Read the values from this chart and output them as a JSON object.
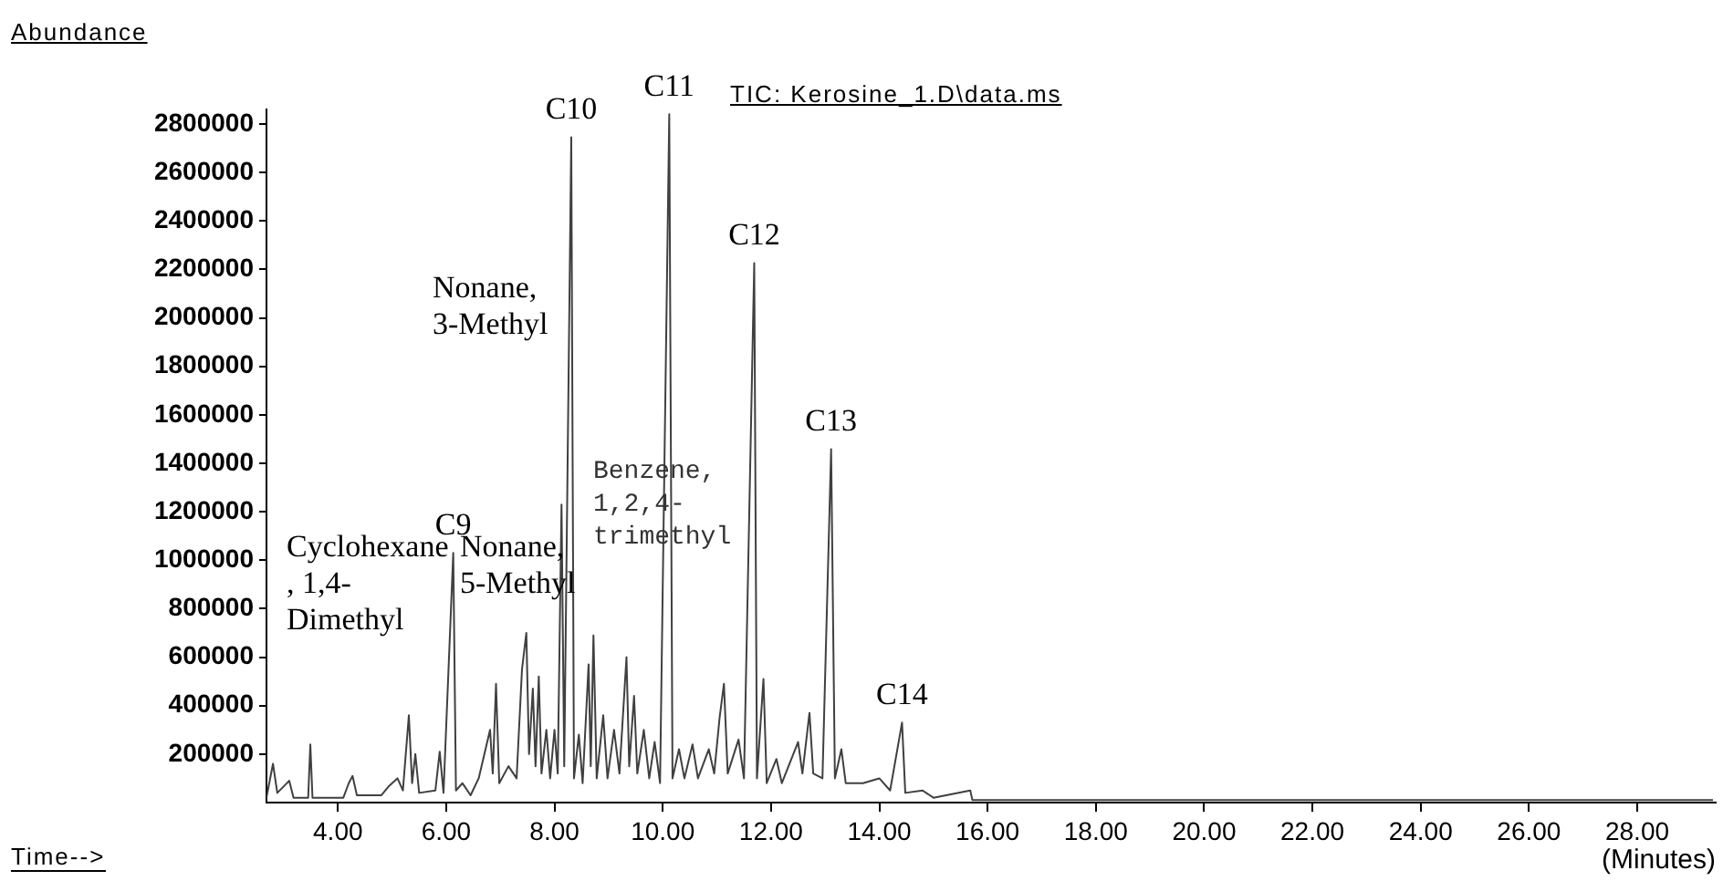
{
  "chart_data": {
    "type": "line",
    "title": "TIC: Kerosine_1.D\\data.ms",
    "ylabel": "Abundance",
    "xlabel": "Time-->",
    "annotations": [
      {
        "text": "C9",
        "x": 6.13,
        "y": 1030000
      },
      {
        "text": "C10",
        "x": 8.31,
        "y": 2745000
      },
      {
        "text": "C11",
        "x": 10.12,
        "y": 2840000
      },
      {
        "text": "C12",
        "x": 11.69,
        "y": 2226000
      },
      {
        "text": "C13",
        "x": 13.11,
        "y": 1458000
      },
      {
        "text": "C14",
        "x": 14.42,
        "y": 330000
      },
      "Nonane,\n3-Methyl",
      "Cyclohexane\n, 1,4-\nDimethyl",
      "Nonane,\n5-Methyl",
      "Benzene,\n1,2,4-\ntrimethyl",
      "(Minutes)"
    ],
    "series": [
      {
        "color": "#404040",
        "x": [
          2.68,
          2.8,
          2.88,
          3.1,
          3.18,
          3.45,
          3.49,
          3.53,
          4.1,
          4.2,
          4.27,
          4.35,
          4.8,
          4.95,
          5.1,
          5.2,
          5.31,
          5.37,
          5.43,
          5.5,
          5.8,
          5.88,
          5.95,
          6.13,
          6.18,
          6.3,
          6.45,
          6.6,
          6.81,
          6.86,
          6.92,
          6.98,
          7.15,
          7.3,
          7.4,
          7.48,
          7.53,
          7.6,
          7.65,
          7.71,
          7.76,
          7.85,
          7.92,
          8.0,
          8.06,
          8.13,
          8.18,
          8.31,
          8.36,
          8.45,
          8.52,
          8.63,
          8.67,
          8.72,
          8.78,
          8.9,
          8.98,
          9.1,
          9.2,
          9.33,
          9.38,
          9.47,
          9.53,
          9.65,
          9.75,
          9.85,
          9.95,
          10.12,
          10.18,
          10.3,
          10.4,
          10.55,
          10.65,
          10.85,
          10.95,
          11.05,
          11.13,
          11.2,
          11.4,
          11.5,
          11.69,
          11.74,
          11.86,
          11.92,
          12.1,
          12.2,
          12.5,
          12.58,
          12.71,
          12.78,
          12.95,
          13.11,
          13.18,
          13.3,
          13.38,
          13.7,
          14.0,
          14.2,
          14.42,
          14.48,
          14.8,
          15.0,
          15.68,
          15.72,
          17.0,
          20.0,
          23.0,
          26.0,
          29.4
        ],
        "values": [
          20000,
          160000,
          40000,
          90000,
          20000,
          20000,
          240000,
          20000,
          20000,
          80000,
          110000,
          30000,
          30000,
          70000,
          100000,
          50000,
          360000,
          80000,
          200000,
          40000,
          50000,
          210000,
          40000,
          1030000,
          50000,
          80000,
          30000,
          100000,
          300000,
          120000,
          490000,
          80000,
          150000,
          100000,
          550000,
          700000,
          200000,
          470000,
          150000,
          520000,
          120000,
          300000,
          100000,
          300000,
          120000,
          1230000,
          150000,
          2745000,
          100000,
          280000,
          80000,
          570000,
          150000,
          690000,
          100000,
          360000,
          100000,
          300000,
          120000,
          600000,
          150000,
          440000,
          120000,
          300000,
          100000,
          250000,
          80000,
          2840000,
          100000,
          220000,
          100000,
          240000,
          100000,
          220000,
          120000,
          350000,
          490000,
          120000,
          260000,
          100000,
          2226000,
          100000,
          510000,
          80000,
          180000,
          80000,
          250000,
          120000,
          370000,
          120000,
          100000,
          1458000,
          100000,
          220000,
          80000,
          80000,
          100000,
          50000,
          330000,
          40000,
          50000,
          20000,
          50000,
          10000,
          10000,
          10000,
          10000,
          10000,
          10000
        ]
      }
    ],
    "xlim": [
      2.68,
      29.45
    ],
    "xticks": [
      {
        "value": 4,
        "label": "4.00"
      },
      {
        "value": 6,
        "label": "6.00"
      },
      {
        "value": 8,
        "label": "8.00"
      },
      {
        "value": 10,
        "label": "10.00"
      },
      {
        "value": 12,
        "label": "12.00"
      },
      {
        "value": 14,
        "label": "14.00"
      },
      {
        "value": 16,
        "label": "16.00"
      },
      {
        "value": 18,
        "label": "18.00"
      },
      {
        "value": 20,
        "label": "20.00"
      },
      {
        "value": 22,
        "label": "22.00"
      },
      {
        "value": 24,
        "label": "24.00"
      },
      {
        "value": 26,
        "label": "26.00"
      },
      {
        "value": 28,
        "label": "28.00"
      }
    ],
    "ylim": [
      0,
      2860000
    ],
    "yticks": [
      200000,
      400000,
      600000,
      800000,
      1000000,
      1200000,
      1400000,
      1600000,
      1800000,
      2000000,
      2200000,
      2400000,
      2600000,
      2800000
    ],
    "grid": false,
    "legend": false,
    "marker": "none",
    "line_style": "solid"
  }
}
